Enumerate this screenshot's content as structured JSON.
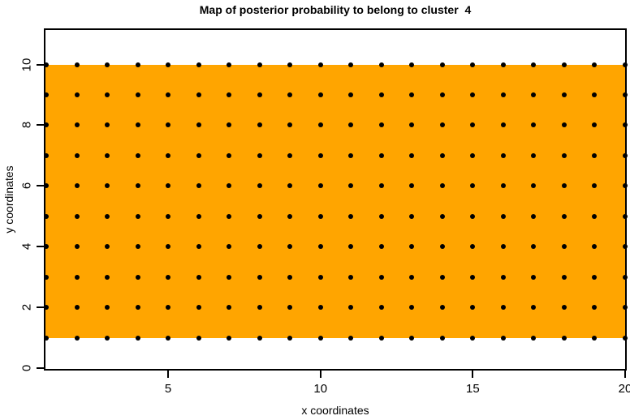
{
  "chart_data": {
    "type": "scatter",
    "title": "Map of posterior probability to belong to cluster  4",
    "xlabel": "x coordinates",
    "ylabel": "y coordinates",
    "xlim": [
      1,
      20
    ],
    "ylim": [
      0,
      11.2
    ],
    "x_ticks": [
      5,
      10,
      15,
      20
    ],
    "y_ticks": [
      0,
      2,
      4,
      6,
      8,
      10
    ],
    "grid_x": [
      1,
      2,
      3,
      4,
      5,
      6,
      7,
      8,
      9,
      10,
      11,
      12,
      13,
      14,
      15,
      16,
      17,
      18,
      19,
      20
    ],
    "grid_y": [
      1,
      2,
      3,
      4,
      5,
      6,
      7,
      8,
      9,
      10
    ],
    "point_color": "#000000",
    "region": {
      "x_min": 1,
      "x_max": 20,
      "y_min": 1,
      "y_max": 10,
      "fill": "#FFA500"
    },
    "background_color": "#FFFFFF",
    "axis_color": "#000000",
    "grid": false,
    "legend": null
  }
}
